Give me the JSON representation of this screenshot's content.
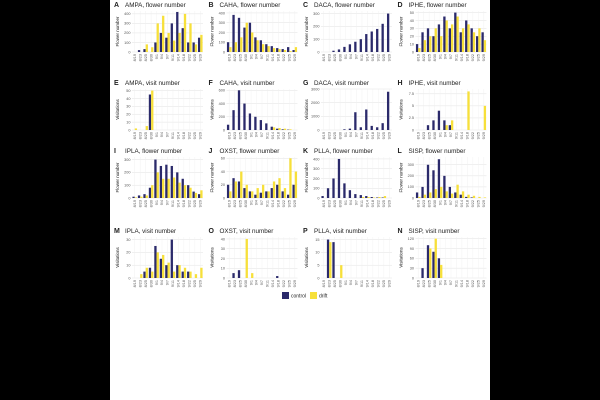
{
  "chart_data": [
    {
      "type": "bar",
      "letter": "A",
      "title": "AMPA, flower number",
      "ylabel": "Flower number",
      "categories": [
        "8/19",
        "8/23",
        "8/25",
        "8/30",
        "9/1",
        "9/4",
        "9/7",
        "9/11",
        "9/14",
        "9/18",
        "9/22",
        "9/25",
        "9/29"
      ],
      "series": [
        {
          "values": [
            0,
            20,
            30,
            0,
            100,
            200,
            150,
            300,
            420,
            250,
            100,
            100,
            150
          ]
        },
        {
          "values": [
            0,
            0,
            80,
            50,
            300,
            380,
            200,
            120,
            200,
            400,
            300,
            80,
            180
          ]
        }
      ],
      "ylim": [
        0,
        430
      ],
      "yticks": [
        0,
        100,
        200,
        300,
        400
      ]
    },
    {
      "type": "bar",
      "letter": "B",
      "title": "CAHA, flower number",
      "ylabel": "Flower number",
      "categories": [
        "8/19",
        "8/23",
        "8/25",
        "8/30",
        "9/1",
        "9/4",
        "9/7",
        "9/11",
        "9/14",
        "9/18",
        "9/22",
        "9/25",
        "9/29"
      ],
      "series": [
        {
          "values": [
            100,
            380,
            350,
            250,
            300,
            150,
            120,
            80,
            60,
            40,
            30,
            50,
            20
          ]
        },
        {
          "values": [
            50,
            100,
            150,
            300,
            200,
            120,
            80,
            60,
            40,
            30,
            20,
            10,
            50
          ]
        }
      ],
      "ylim": [
        0,
        420
      ],
      "yticks": [
        0,
        100,
        200,
        300,
        400
      ]
    },
    {
      "type": "bar",
      "letter": "C",
      "title": "DACA, flower number",
      "ylabel": "Flower number",
      "categories": [
        "8/19",
        "8/23",
        "8/25",
        "8/30",
        "9/1",
        "9/4",
        "9/7",
        "9/11",
        "9/14",
        "9/18",
        "9/22",
        "9/25",
        "9/29"
      ],
      "series": [
        {
          "values": [
            0,
            0,
            10,
            20,
            40,
            60,
            80,
            100,
            140,
            160,
            180,
            220,
            300
          ]
        },
        {
          "values": [
            0,
            0,
            0,
            0,
            0,
            0,
            0,
            0,
            0,
            0,
            0,
            0,
            0
          ]
        }
      ],
      "ylim": [
        0,
        320
      ],
      "yticks": [
        0,
        100,
        200,
        300
      ]
    },
    {
      "type": "bar",
      "letter": "D",
      "title": "IPHE, flower number",
      "ylabel": "Flower number",
      "categories": [
        "8/19",
        "8/23",
        "8/25",
        "8/30",
        "9/1",
        "9/4",
        "9/7",
        "9/11",
        "9/14",
        "9/18",
        "9/22",
        "9/25",
        "9/29"
      ],
      "series": [
        {
          "values": [
            10,
            25,
            30,
            20,
            35,
            45,
            30,
            50,
            25,
            40,
            30,
            20,
            25
          ]
        },
        {
          "values": [
            5,
            15,
            20,
            30,
            20,
            40,
            35,
            45,
            30,
            35,
            25,
            30,
            15
          ]
        }
      ],
      "ylim": [
        0,
        52
      ],
      "yticks": [
        0,
        10,
        20,
        30,
        40,
        50
      ]
    },
    {
      "type": "bar",
      "letter": "E",
      "title": "AMPA, visit number",
      "ylabel": "Visitations",
      "categories": [
        "8/19",
        "8/23",
        "8/25",
        "8/30",
        "9/1",
        "9/4",
        "9/7",
        "9/11",
        "9/14",
        "9/18",
        "9/22",
        "9/25",
        "9/29"
      ],
      "series": [
        {
          "values": [
            0,
            0,
            0,
            45,
            0,
            0,
            0,
            0,
            0,
            0,
            0,
            0,
            0
          ]
        },
        {
          "values": [
            2,
            0,
            5,
            50,
            0,
            0,
            0,
            0,
            0,
            0,
            0,
            0,
            0
          ]
        }
      ],
      "ylim": [
        0,
        52
      ],
      "yticks": [
        0,
        10,
        20,
        30,
        40,
        50
      ]
    },
    {
      "type": "bar",
      "letter": "F",
      "title": "CAHA, visit number",
      "ylabel": "Visitations",
      "categories": [
        "8/19",
        "8/23",
        "8/25",
        "8/30",
        "9/1",
        "9/4",
        "9/7",
        "9/11",
        "9/14",
        "9/18",
        "9/22",
        "9/25",
        "9/29"
      ],
      "series": [
        {
          "values": [
            80,
            300,
            600,
            400,
            250,
            200,
            150,
            100,
            50,
            20,
            10,
            5,
            0
          ]
        },
        {
          "values": [
            0,
            0,
            0,
            0,
            0,
            0,
            0,
            0,
            40,
            30,
            20,
            10,
            0
          ]
        }
      ],
      "ylim": [
        0,
        620
      ],
      "yticks": [
        0,
        200,
        400,
        600
      ]
    },
    {
      "type": "bar",
      "letter": "G",
      "title": "DACA, visit number",
      "ylabel": "Visitations",
      "categories": [
        "8/19",
        "8/23",
        "8/25",
        "8/30",
        "9/1",
        "9/4",
        "9/7",
        "9/11",
        "9/14",
        "9/18",
        "9/22",
        "9/25",
        "9/29"
      ],
      "series": [
        {
          "values": [
            0,
            0,
            0,
            0,
            50,
            100,
            1300,
            200,
            1500,
            300,
            200,
            500,
            2800
          ]
        },
        {
          "values": [
            0,
            0,
            0,
            0,
            0,
            0,
            0,
            0,
            0,
            0,
            0,
            0,
            0
          ]
        }
      ],
      "ylim": [
        0,
        3000
      ],
      "yticks": [
        0,
        1000,
        2000,
        3000
      ]
    },
    {
      "type": "bar",
      "letter": "H",
      "title": "IPHE, visit number",
      "ylabel": "Visitations",
      "categories": [
        "8/19",
        "8/23",
        "8/25",
        "8/30",
        "9/1",
        "9/4",
        "9/7",
        "9/11",
        "9/14",
        "9/18",
        "9/22",
        "9/25",
        "9/29"
      ],
      "series": [
        {
          "values": [
            0,
            0,
            1,
            2,
            4,
            2,
            1,
            0,
            0,
            0,
            0,
            0,
            0
          ]
        },
        {
          "values": [
            0,
            0,
            0,
            0,
            0,
            1,
            2,
            0,
            0,
            8,
            0,
            0,
            5
          ]
        }
      ],
      "ylim": [
        0,
        8.5
      ],
      "yticks": [
        0,
        2.5,
        5,
        7.5
      ]
    },
    {
      "type": "bar",
      "letter": "I",
      "title": "IPLA, flower number",
      "ylabel": "Flower number",
      "categories": [
        "8/19",
        "8/23",
        "8/25",
        "8/30",
        "9/1",
        "9/4",
        "9/7",
        "9/11",
        "9/14",
        "9/18",
        "9/22",
        "9/25",
        "9/29"
      ],
      "series": [
        {
          "values": [
            10,
            20,
            30,
            80,
            300,
            250,
            260,
            250,
            200,
            150,
            100,
            50,
            30
          ]
        },
        {
          "values": [
            5,
            10,
            20,
            100,
            200,
            150,
            150,
            160,
            120,
            100,
            80,
            40,
            60
          ]
        }
      ],
      "ylim": [
        0,
        320
      ],
      "yticks": [
        0,
        100,
        200,
        300
      ]
    },
    {
      "type": "bar",
      "letter": "J",
      "title": "OXST, flower number",
      "ylabel": "Flower number",
      "categories": [
        "8/19",
        "8/23",
        "8/25",
        "8/30",
        "9/1",
        "9/4",
        "9/7",
        "9/11",
        "9/14",
        "9/18",
        "9/22",
        "9/25",
        "9/29"
      ],
      "series": [
        {
          "values": [
            20,
            30,
            25,
            15,
            10,
            5,
            8,
            10,
            15,
            20,
            10,
            5,
            20
          ]
        },
        {
          "values": [
            10,
            25,
            40,
            20,
            10,
            15,
            20,
            10,
            25,
            30,
            15,
            60,
            40
          ]
        }
      ],
      "ylim": [
        0,
        62
      ],
      "yticks": [
        0,
        20,
        40,
        60
      ]
    },
    {
      "type": "bar",
      "letter": "K",
      "title": "PLLA, flower number",
      "ylabel": "Flower number",
      "categories": [
        "8/19",
        "8/23",
        "8/25",
        "8/30",
        "9/1",
        "9/4",
        "9/7",
        "9/11",
        "9/14",
        "9/18",
        "9/22",
        "9/25",
        "9/29"
      ],
      "series": [
        {
          "values": [
            20,
            100,
            200,
            400,
            150,
            80,
            40,
            30,
            20,
            10,
            5,
            5,
            0
          ]
        },
        {
          "values": [
            0,
            0,
            0,
            0,
            0,
            0,
            0,
            10,
            10,
            5,
            10,
            20,
            0
          ]
        }
      ],
      "ylim": [
        0,
        420
      ],
      "yticks": [
        0,
        100,
        200,
        300,
        400
      ]
    },
    {
      "type": "bar",
      "letter": "L",
      "title": "SISP, flower number",
      "ylabel": "Flower number",
      "categories": [
        "8/19",
        "8/23",
        "8/25",
        "8/30",
        "9/1",
        "9/4",
        "9/7",
        "9/11",
        "9/14",
        "9/18",
        "9/22",
        "9/25",
        "9/29"
      ],
      "series": [
        {
          "values": [
            50,
            100,
            300,
            250,
            350,
            200,
            100,
            50,
            30,
            10,
            5,
            0,
            0
          ]
        },
        {
          "values": [
            10,
            30,
            50,
            80,
            100,
            60,
            40,
            120,
            60,
            30,
            20,
            10,
            5
          ]
        }
      ],
      "ylim": [
        0,
        370
      ],
      "yticks": [
        0,
        100,
        200,
        300
      ]
    },
    {
      "type": "bar",
      "letter": "M",
      "title": "IPLA, visit number",
      "ylabel": "Visitations",
      "categories": [
        "8/19",
        "8/23",
        "8/25",
        "8/30",
        "9/1",
        "9/4",
        "9/7",
        "9/11",
        "9/14",
        "9/18",
        "9/22",
        "9/25",
        "9/29"
      ],
      "series": [
        {
          "values": [
            0,
            0,
            5,
            8,
            25,
            15,
            10,
            30,
            10,
            5,
            5,
            0,
            0
          ]
        },
        {
          "values": [
            0,
            3,
            8,
            5,
            20,
            18,
            12,
            5,
            10,
            8,
            5,
            3,
            8
          ]
        }
      ],
      "ylim": [
        0,
        32
      ],
      "yticks": [
        0,
        10,
        20,
        30
      ]
    },
    {
      "type": "bar",
      "letter": "O",
      "title": "OXST, visit number",
      "ylabel": "Visitations",
      "categories": [
        "8/19",
        "8/23",
        "8/25",
        "8/30",
        "9/1",
        "9/4",
        "9/7",
        "9/11",
        "9/14",
        "9/18",
        "9/22",
        "9/25",
        "9/29"
      ],
      "series": [
        {
          "values": [
            0,
            5,
            8,
            0,
            0,
            0,
            0,
            0,
            0,
            2,
            0,
            0,
            0
          ]
        },
        {
          "values": [
            0,
            0,
            0,
            40,
            5,
            0,
            0,
            0,
            0,
            0,
            0,
            0,
            0
          ]
        }
      ],
      "ylim": [
        0,
        42
      ],
      "yticks": [
        0,
        10,
        20,
        30,
        40
      ]
    },
    {
      "type": "bar",
      "letter": "P",
      "title": "PLLA, visit number",
      "ylabel": "Visitations",
      "categories": [
        "8/19",
        "8/23",
        "8/25",
        "8/30",
        "9/1",
        "9/4",
        "9/7",
        "9/11",
        "9/14",
        "9/18",
        "9/22",
        "9/25",
        "9/29"
      ],
      "series": [
        {
          "values": [
            0,
            15,
            14,
            0,
            0,
            0,
            0,
            0,
            0,
            0,
            0,
            0,
            0
          ]
        },
        {
          "values": [
            0,
            14,
            0,
            5,
            0,
            0,
            0,
            0,
            0,
            0,
            0,
            0,
            0
          ]
        }
      ],
      "ylim": [
        0,
        16
      ],
      "yticks": [
        0,
        5,
        10,
        15
      ]
    },
    {
      "type": "bar",
      "letter": "N",
      "title": "SISP, visit number",
      "ylabel": "Visitations",
      "categories": [
        "8/19",
        "8/23",
        "8/25",
        "8/30",
        "9/1",
        "9/4",
        "9/7",
        "9/11",
        "9/14",
        "9/18",
        "9/22",
        "9/25",
        "9/29"
      ],
      "series": [
        {
          "values": [
            0,
            30,
            100,
            80,
            60,
            0,
            0,
            0,
            0,
            0,
            0,
            0,
            0
          ]
        },
        {
          "values": [
            0,
            0,
            90,
            120,
            40,
            0,
            0,
            0,
            0,
            0,
            0,
            0,
            0
          ]
        }
      ],
      "ylim": [
        0,
        125
      ],
      "yticks": [
        0,
        30,
        60,
        90,
        120
      ]
    }
  ],
  "legend": [
    {
      "name": "control",
      "color": "#2b2a6b"
    },
    {
      "name": "drift",
      "color": "#f7e03a"
    }
  ]
}
